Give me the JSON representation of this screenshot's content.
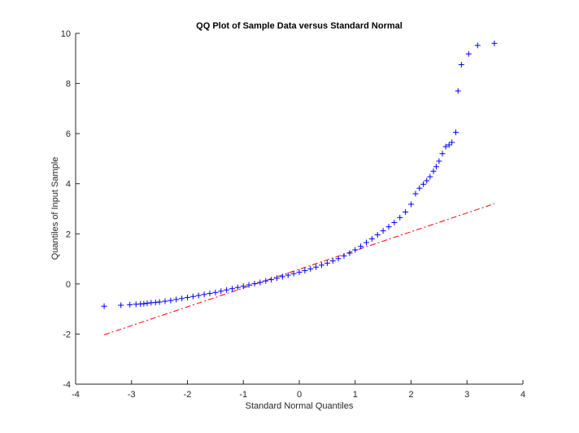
{
  "chart_data": {
    "type": "scatter",
    "title": "QQ Plot of Sample Data versus Standard Normal",
    "xlabel": "Standard Normal Quantiles",
    "ylabel": "Quantiles of Input Sample",
    "xlim": [
      -4,
      4
    ],
    "ylim": [
      -4,
      10
    ],
    "xticks": [
      -4,
      -3,
      -2,
      -1,
      0,
      1,
      2,
      3,
      4
    ],
    "yticks": [
      -4,
      -2,
      0,
      2,
      4,
      6,
      8,
      10
    ],
    "grid": false,
    "box": false,
    "colors": {
      "points": "#0000ff",
      "reference_line": "#ff0000",
      "axes": "#262626"
    },
    "series": [
      {
        "kind": "sample-quantiles",
        "marker": "+",
        "points": [
          [
            -3.49,
            -0.89
          ],
          [
            -3.19,
            -0.85
          ],
          [
            -3.03,
            -0.83
          ],
          [
            -2.92,
            -0.81
          ],
          [
            -2.84,
            -0.8
          ],
          [
            -2.78,
            -0.79
          ],
          [
            -2.72,
            -0.77
          ],
          [
            -2.65,
            -0.75
          ],
          [
            -2.57,
            -0.74
          ],
          [
            -2.5,
            -0.72
          ],
          [
            -2.4,
            -0.69
          ],
          [
            -2.3,
            -0.66
          ],
          [
            -2.2,
            -0.62
          ],
          [
            -2.1,
            -0.58
          ],
          [
            -2.0,
            -0.54
          ],
          [
            -1.9,
            -0.5
          ],
          [
            -1.8,
            -0.46
          ],
          [
            -1.7,
            -0.42
          ],
          [
            -1.6,
            -0.38
          ],
          [
            -1.5,
            -0.34
          ],
          [
            -1.4,
            -0.29
          ],
          [
            -1.3,
            -0.24
          ],
          [
            -1.2,
            -0.19
          ],
          [
            -1.1,
            -0.14
          ],
          [
            -1.0,
            -0.09
          ],
          [
            -0.9,
            -0.04
          ],
          [
            -0.8,
            0.01
          ],
          [
            -0.7,
            0.06
          ],
          [
            -0.6,
            0.12
          ],
          [
            -0.5,
            0.17
          ],
          [
            -0.4,
            0.23
          ],
          [
            -0.3,
            0.29
          ],
          [
            -0.2,
            0.35
          ],
          [
            -0.1,
            0.41
          ],
          [
            0.0,
            0.47
          ],
          [
            0.1,
            0.53
          ],
          [
            0.2,
            0.6
          ],
          [
            0.3,
            0.67
          ],
          [
            0.4,
            0.75
          ],
          [
            0.5,
            0.83
          ],
          [
            0.6,
            0.92
          ],
          [
            0.7,
            1.01
          ],
          [
            0.8,
            1.12
          ],
          [
            0.9,
            1.23
          ],
          [
            1.0,
            1.36
          ],
          [
            1.1,
            1.5
          ],
          [
            1.2,
            1.65
          ],
          [
            1.3,
            1.8
          ],
          [
            1.4,
            1.96
          ],
          [
            1.5,
            2.12
          ],
          [
            1.6,
            2.28
          ],
          [
            1.7,
            2.45
          ],
          [
            1.8,
            2.65
          ],
          [
            1.9,
            2.87
          ],
          [
            2.0,
            3.18
          ],
          [
            2.08,
            3.6
          ],
          [
            2.15,
            3.82
          ],
          [
            2.22,
            3.98
          ],
          [
            2.28,
            4.12
          ],
          [
            2.34,
            4.28
          ],
          [
            2.4,
            4.5
          ],
          [
            2.45,
            4.68
          ],
          [
            2.5,
            4.9
          ],
          [
            2.56,
            5.2
          ],
          [
            2.62,
            5.48
          ],
          [
            2.68,
            5.55
          ],
          [
            2.73,
            5.65
          ],
          [
            2.8,
            6.05
          ],
          [
            2.84,
            7.7
          ],
          [
            2.9,
            8.75
          ],
          [
            3.03,
            9.18
          ],
          [
            3.19,
            9.52
          ],
          [
            3.49,
            9.6
          ]
        ]
      },
      {
        "kind": "reference-line",
        "style": "dash-dot",
        "points": [
          [
            -3.49,
            -2.03
          ],
          [
            3.49,
            3.2
          ]
        ]
      }
    ]
  }
}
